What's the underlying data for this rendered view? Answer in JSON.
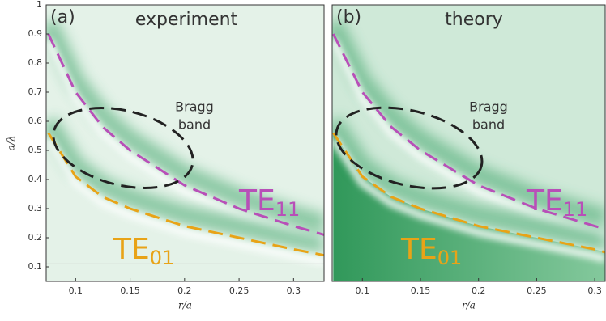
{
  "chart_data": [
    {
      "type": "line",
      "panel_label": "(a)",
      "title": "experiment",
      "annotation": [
        "Bragg",
        "band"
      ],
      "xlabel": "r/a",
      "ylabel": "a/λ",
      "xlim": [
        0.073,
        0.328
      ],
      "ylim": [
        0.05,
        1
      ],
      "xticks": [
        0.1,
        0.15,
        0.2,
        0.25,
        0.3
      ],
      "yticks": [
        0.1,
        0.2,
        0.3,
        0.4,
        0.5,
        0.6,
        0.7,
        0.8,
        0.9,
        1
      ],
      "reference_line": 0.11,
      "x": [
        0.075,
        0.1,
        0.125,
        0.15,
        0.2,
        0.25,
        0.3,
        0.328
      ],
      "series": [
        {
          "name": "TE",
          "subscript": "11",
          "color": "#b84fb8",
          "values": [
            0.9,
            0.7,
            0.58,
            0.5,
            0.38,
            0.3,
            0.24,
            0.21
          ]
        },
        {
          "name": "TE",
          "subscript": "01",
          "color": "#e8a317",
          "values": [
            0.56,
            0.41,
            0.34,
            0.3,
            0.24,
            0.2,
            0.16,
            0.14
          ]
        }
      ]
    },
    {
      "type": "line",
      "panel_label": "(b)",
      "title": "theory",
      "annotation": [
        "Bragg",
        "band"
      ],
      "xlabel": "r/a",
      "xlim": [
        0.074,
        0.309
      ],
      "ylim": [
        0.05,
        1
      ],
      "xticks": [
        0.1,
        0.15,
        0.2,
        0.25,
        0.3
      ],
      "x": [
        0.075,
        0.1,
        0.125,
        0.15,
        0.2,
        0.25,
        0.3,
        0.309
      ],
      "series": [
        {
          "name": "TE",
          "subscript": "11",
          "color": "#b84fb8",
          "values": [
            0.9,
            0.7,
            0.58,
            0.5,
            0.38,
            0.3,
            0.24,
            0.23
          ]
        },
        {
          "name": "TE",
          "subscript": "01",
          "color": "#e8a317",
          "values": [
            0.56,
            0.41,
            0.34,
            0.3,
            0.24,
            0.2,
            0.16,
            0.15
          ]
        }
      ]
    }
  ]
}
